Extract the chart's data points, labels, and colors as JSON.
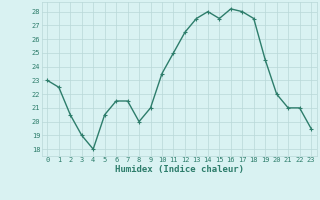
{
  "x": [
    0,
    1,
    2,
    3,
    4,
    5,
    6,
    7,
    8,
    9,
    10,
    11,
    12,
    13,
    14,
    15,
    16,
    17,
    18,
    19,
    20,
    21,
    22,
    23
  ],
  "y": [
    23,
    22.5,
    20.5,
    19,
    18,
    20.5,
    21.5,
    21.5,
    20,
    21,
    23.5,
    25,
    26.5,
    27.5,
    28,
    27.5,
    28.2,
    28,
    27.5,
    24.5,
    22,
    21,
    21,
    19.5
  ],
  "line_color": "#2d7d6b",
  "marker": "+",
  "marker_size": 3,
  "marker_edge_width": 0.8,
  "bg_color": "#d9f2f2",
  "grid_color": "#b8d8d8",
  "xlabel": "Humidex (Indice chaleur)",
  "ylabel_ticks": [
    18,
    19,
    20,
    21,
    22,
    23,
    24,
    25,
    26,
    27,
    28
  ],
  "xlim": [
    -0.5,
    23.5
  ],
  "ylim": [
    17.5,
    28.7
  ],
  "tick_label_color": "#2d7d6b",
  "xlabel_color": "#2d7d6b",
  "line_width": 1.0,
  "tick_fontsize": 5.0,
  "xlabel_fontsize": 6.5
}
